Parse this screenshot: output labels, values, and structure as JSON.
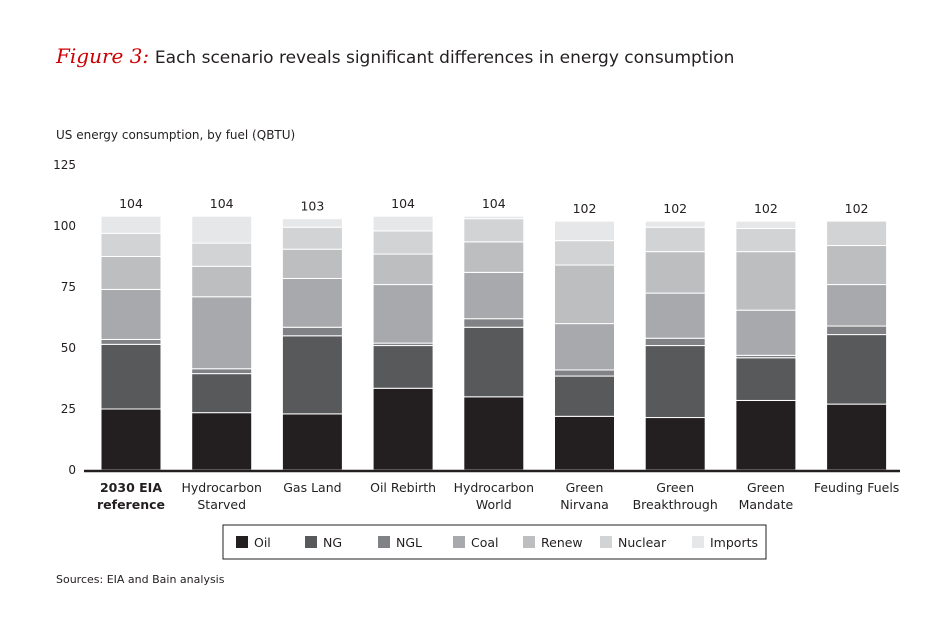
{
  "header": {
    "figure_label": "Figure 3:",
    "title_text": "Each scenario reveals significant differences in energy consumption"
  },
  "chart_data": {
    "type": "bar",
    "stacked": true,
    "ylabel": "US energy consumption, by fuel (QBTU)",
    "ylim": [
      0,
      125
    ],
    "yticks": [
      0,
      25,
      50,
      75,
      100,
      125
    ],
    "categories": [
      [
        "2030 EIA",
        "reference"
      ],
      [
        "Hydrocarbon",
        "Starved"
      ],
      [
        "Gas Land"
      ],
      [
        "Oil Rebirth"
      ],
      [
        "Hydrocarbon",
        "World"
      ],
      [
        "Green",
        "Nirvana"
      ],
      [
        "Green",
        "Breakthrough"
      ],
      [
        "Green",
        "Mandate"
      ],
      [
        "Feuding Fuels"
      ]
    ],
    "bold_categories": [
      0
    ],
    "totals": [
      "104",
      "104",
      "103",
      "104",
      "104",
      "102",
      "102",
      "102",
      "102"
    ],
    "series": [
      {
        "name": "Oil",
        "color": "#231f20",
        "values": [
          25,
          23.5,
          23,
          33.5,
          30,
          22,
          21.5,
          28.5,
          27
        ]
      },
      {
        "name": "NG",
        "color": "#58595b",
        "values": [
          26.5,
          16,
          32,
          17.5,
          28.5,
          16.5,
          29.5,
          17.5,
          28.5
        ]
      },
      {
        "name": "NGL",
        "color": "#808285",
        "values": [
          2,
          2,
          3.5,
          1,
          3.5,
          2.5,
          3,
          1,
          3.5
        ]
      },
      {
        "name": "Coal",
        "color": "#a7a9ac",
        "values": [
          20.5,
          29.5,
          20,
          24,
          19,
          19,
          18.5,
          18.5,
          17
        ]
      },
      {
        "name": "Renew",
        "color": "#bcbec0",
        "values": [
          13.5,
          12.5,
          12,
          12.5,
          12.5,
          24,
          17,
          24,
          16
        ]
      },
      {
        "name": "Nuclear",
        "color": "#d1d3d4",
        "values": [
          9.5,
          9.5,
          9,
          9.5,
          9.5,
          10,
          10,
          9.5,
          10
        ]
      },
      {
        "name": "Imports",
        "color": "#e6e7e8",
        "values": [
          7,
          11,
          3.5,
          6,
          1,
          8,
          2.5,
          3,
          0
        ]
      }
    ]
  },
  "footer": {
    "sources": "Sources: EIA and Bain analysis"
  }
}
